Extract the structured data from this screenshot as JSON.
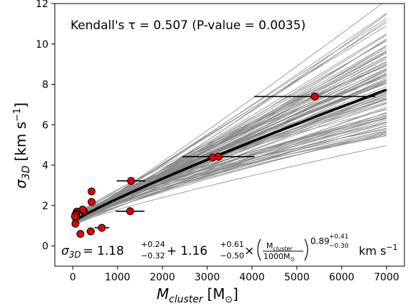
{
  "chart_data": {
    "type": "scatter",
    "title": "",
    "xlabel": "M",
    "xlabel_sub": "cluster",
    "xlabel_unit_open": "[M",
    "xlabel_unit_sub": "⊙",
    "xlabel_unit_close": "]",
    "ylabel": "σ",
    "ylabel_sub": "3D",
    "ylabel_unit": "[km s",
    "ylabel_unit_sup": "−1",
    "ylabel_unit_close": "]",
    "xlim": [
      -400,
      7400
    ],
    "ylim": [
      -1,
      12
    ],
    "xticks": [
      0,
      1000,
      2000,
      3000,
      4000,
      5000,
      6000,
      7000
    ],
    "yticks": [
      0,
      2,
      4,
      6,
      8,
      10,
      12
    ],
    "grid": false,
    "annotation_top": "Kendall's τ = 0.507 (P-value = 0.0035)",
    "equation": {
      "lhs": "σ",
      "lhs_sub": "3D",
      "eq": "= 1.18",
      "a_up": "+0.24",
      "a_dn": "−0.32",
      "plus": "+ 1.16",
      "b_up": "+0.61",
      "b_dn": "−0.50",
      "times": "×",
      "frac_num": "M",
      "frac_num_sub": "cluster",
      "frac_den": "1000M",
      "frac_den_sub": "⊙",
      "exp": "0.89",
      "c_up": "+0.41",
      "c_dn": "−0.30",
      "unit": "km s",
      "unit_sup": "−1"
    },
    "fit": {
      "a": 1.18,
      "b": 1.16,
      "c": 0.89,
      "scale": 1000,
      "x_range": [
        0,
        7000
      ]
    },
    "points": [
      {
        "x": 5400,
        "y": 7.4,
        "xerr": 1350
      },
      {
        "x": 3250,
        "y": 4.42,
        "xerr": 800
      },
      {
        "x": 3120,
        "y": 4.38,
        "xerr": 0
      },
      {
        "x": 1300,
        "y": 3.22,
        "xerr": 320
      },
      {
        "x": 1280,
        "y": 1.72,
        "xerr": 320
      },
      {
        "x": 420,
        "y": 2.7,
        "xerr": 70
      },
      {
        "x": 420,
        "y": 2.18,
        "xerr": 70
      },
      {
        "x": 650,
        "y": 0.9,
        "xerr": 160
      },
      {
        "x": 400,
        "y": 0.72,
        "xerr": 90
      },
      {
        "x": 170,
        "y": 0.6,
        "xerr": 50
      },
      {
        "x": 250,
        "y": 1.72,
        "xerr": 60
      },
      {
        "x": 220,
        "y": 1.8,
        "xerr": 50
      },
      {
        "x": 90,
        "y": 1.7,
        "xerr": 40
      },
      {
        "x": 80,
        "y": 1.6,
        "xerr": 30
      },
      {
        "x": 70,
        "y": 1.48,
        "xerr": 30
      },
      {
        "x": 60,
        "y": 1.55,
        "xerr": 0
      },
      {
        "x": 50,
        "y": 1.45,
        "xerr": 0
      },
      {
        "x": 60,
        "y": 1.1,
        "xerr": 30
      }
    ],
    "marker_color": "#e00000",
    "fit_color": "#000000",
    "sample_color": "#8a8a8a"
  }
}
